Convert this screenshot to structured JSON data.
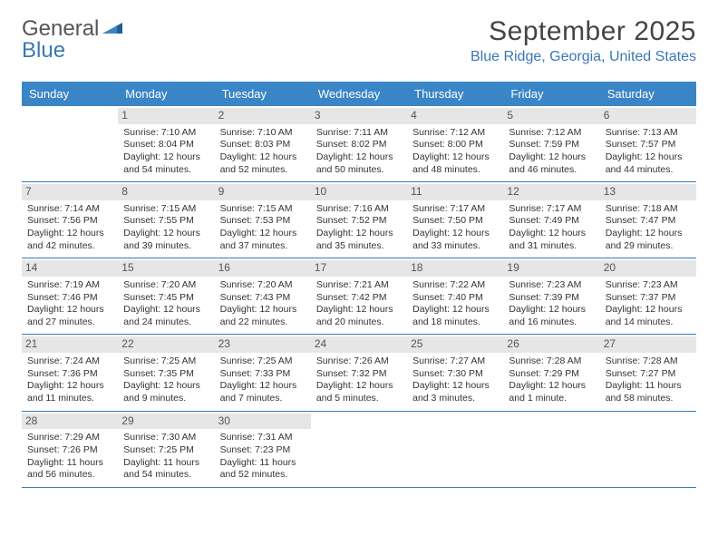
{
  "brand": {
    "part1": "General",
    "part2": "Blue"
  },
  "title": "September 2025",
  "location": "Blue Ridge, Georgia, United States",
  "colors": {
    "header_bg": "#3a85c6",
    "header_text": "#ffffff",
    "accent": "#3a78b5",
    "daynum_bg": "#e6e6e6",
    "body_text": "#333333",
    "page_bg": "#ffffff"
  },
  "dow": [
    "Sunday",
    "Monday",
    "Tuesday",
    "Wednesday",
    "Thursday",
    "Friday",
    "Saturday"
  ],
  "layout": {
    "columns": 7,
    "rows": 5,
    "first_weekday_offset": 1
  },
  "weeks": [
    [
      {
        "n": "",
        "sunrise": "",
        "sunset": "",
        "daylight": ""
      },
      {
        "n": "1",
        "sunrise": "Sunrise: 7:10 AM",
        "sunset": "Sunset: 8:04 PM",
        "daylight": "Daylight: 12 hours and 54 minutes."
      },
      {
        "n": "2",
        "sunrise": "Sunrise: 7:10 AM",
        "sunset": "Sunset: 8:03 PM",
        "daylight": "Daylight: 12 hours and 52 minutes."
      },
      {
        "n": "3",
        "sunrise": "Sunrise: 7:11 AM",
        "sunset": "Sunset: 8:02 PM",
        "daylight": "Daylight: 12 hours and 50 minutes."
      },
      {
        "n": "4",
        "sunrise": "Sunrise: 7:12 AM",
        "sunset": "Sunset: 8:00 PM",
        "daylight": "Daylight: 12 hours and 48 minutes."
      },
      {
        "n": "5",
        "sunrise": "Sunrise: 7:12 AM",
        "sunset": "Sunset: 7:59 PM",
        "daylight": "Daylight: 12 hours and 46 minutes."
      },
      {
        "n": "6",
        "sunrise": "Sunrise: 7:13 AM",
        "sunset": "Sunset: 7:57 PM",
        "daylight": "Daylight: 12 hours and 44 minutes."
      }
    ],
    [
      {
        "n": "7",
        "sunrise": "Sunrise: 7:14 AM",
        "sunset": "Sunset: 7:56 PM",
        "daylight": "Daylight: 12 hours and 42 minutes."
      },
      {
        "n": "8",
        "sunrise": "Sunrise: 7:15 AM",
        "sunset": "Sunset: 7:55 PM",
        "daylight": "Daylight: 12 hours and 39 minutes."
      },
      {
        "n": "9",
        "sunrise": "Sunrise: 7:15 AM",
        "sunset": "Sunset: 7:53 PM",
        "daylight": "Daylight: 12 hours and 37 minutes."
      },
      {
        "n": "10",
        "sunrise": "Sunrise: 7:16 AM",
        "sunset": "Sunset: 7:52 PM",
        "daylight": "Daylight: 12 hours and 35 minutes."
      },
      {
        "n": "11",
        "sunrise": "Sunrise: 7:17 AM",
        "sunset": "Sunset: 7:50 PM",
        "daylight": "Daylight: 12 hours and 33 minutes."
      },
      {
        "n": "12",
        "sunrise": "Sunrise: 7:17 AM",
        "sunset": "Sunset: 7:49 PM",
        "daylight": "Daylight: 12 hours and 31 minutes."
      },
      {
        "n": "13",
        "sunrise": "Sunrise: 7:18 AM",
        "sunset": "Sunset: 7:47 PM",
        "daylight": "Daylight: 12 hours and 29 minutes."
      }
    ],
    [
      {
        "n": "14",
        "sunrise": "Sunrise: 7:19 AM",
        "sunset": "Sunset: 7:46 PM",
        "daylight": "Daylight: 12 hours and 27 minutes."
      },
      {
        "n": "15",
        "sunrise": "Sunrise: 7:20 AM",
        "sunset": "Sunset: 7:45 PM",
        "daylight": "Daylight: 12 hours and 24 minutes."
      },
      {
        "n": "16",
        "sunrise": "Sunrise: 7:20 AM",
        "sunset": "Sunset: 7:43 PM",
        "daylight": "Daylight: 12 hours and 22 minutes."
      },
      {
        "n": "17",
        "sunrise": "Sunrise: 7:21 AM",
        "sunset": "Sunset: 7:42 PM",
        "daylight": "Daylight: 12 hours and 20 minutes."
      },
      {
        "n": "18",
        "sunrise": "Sunrise: 7:22 AM",
        "sunset": "Sunset: 7:40 PM",
        "daylight": "Daylight: 12 hours and 18 minutes."
      },
      {
        "n": "19",
        "sunrise": "Sunrise: 7:23 AM",
        "sunset": "Sunset: 7:39 PM",
        "daylight": "Daylight: 12 hours and 16 minutes."
      },
      {
        "n": "20",
        "sunrise": "Sunrise: 7:23 AM",
        "sunset": "Sunset: 7:37 PM",
        "daylight": "Daylight: 12 hours and 14 minutes."
      }
    ],
    [
      {
        "n": "21",
        "sunrise": "Sunrise: 7:24 AM",
        "sunset": "Sunset: 7:36 PM",
        "daylight": "Daylight: 12 hours and 11 minutes."
      },
      {
        "n": "22",
        "sunrise": "Sunrise: 7:25 AM",
        "sunset": "Sunset: 7:35 PM",
        "daylight": "Daylight: 12 hours and 9 minutes."
      },
      {
        "n": "23",
        "sunrise": "Sunrise: 7:25 AM",
        "sunset": "Sunset: 7:33 PM",
        "daylight": "Daylight: 12 hours and 7 minutes."
      },
      {
        "n": "24",
        "sunrise": "Sunrise: 7:26 AM",
        "sunset": "Sunset: 7:32 PM",
        "daylight": "Daylight: 12 hours and 5 minutes."
      },
      {
        "n": "25",
        "sunrise": "Sunrise: 7:27 AM",
        "sunset": "Sunset: 7:30 PM",
        "daylight": "Daylight: 12 hours and 3 minutes."
      },
      {
        "n": "26",
        "sunrise": "Sunrise: 7:28 AM",
        "sunset": "Sunset: 7:29 PM",
        "daylight": "Daylight: 12 hours and 1 minute."
      },
      {
        "n": "27",
        "sunrise": "Sunrise: 7:28 AM",
        "sunset": "Sunset: 7:27 PM",
        "daylight": "Daylight: 11 hours and 58 minutes."
      }
    ],
    [
      {
        "n": "28",
        "sunrise": "Sunrise: 7:29 AM",
        "sunset": "Sunset: 7:26 PM",
        "daylight": "Daylight: 11 hours and 56 minutes."
      },
      {
        "n": "29",
        "sunrise": "Sunrise: 7:30 AM",
        "sunset": "Sunset: 7:25 PM",
        "daylight": "Daylight: 11 hours and 54 minutes."
      },
      {
        "n": "30",
        "sunrise": "Sunrise: 7:31 AM",
        "sunset": "Sunset: 7:23 PM",
        "daylight": "Daylight: 11 hours and 52 minutes."
      },
      {
        "n": "",
        "sunrise": "",
        "sunset": "",
        "daylight": ""
      },
      {
        "n": "",
        "sunrise": "",
        "sunset": "",
        "daylight": ""
      },
      {
        "n": "",
        "sunrise": "",
        "sunset": "",
        "daylight": ""
      },
      {
        "n": "",
        "sunrise": "",
        "sunset": "",
        "daylight": ""
      }
    ]
  ]
}
